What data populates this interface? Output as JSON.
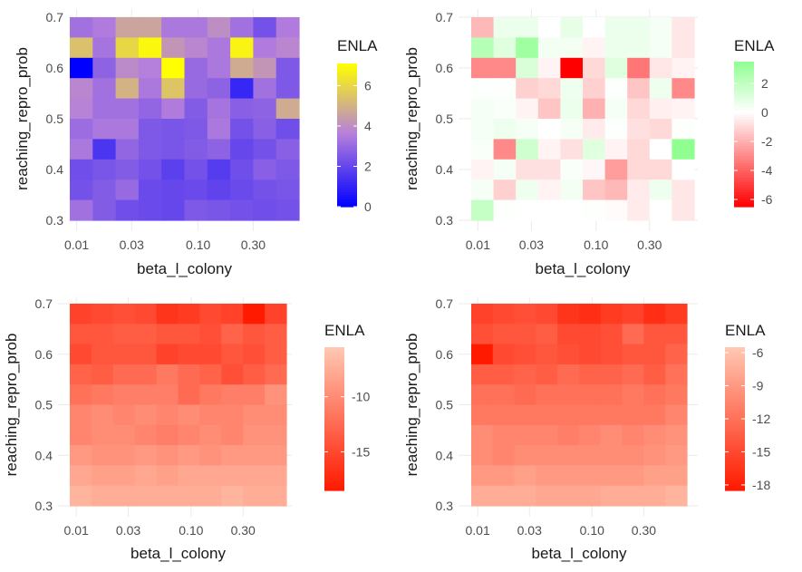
{
  "chart_data": [
    {
      "type": "heatmap",
      "xlabel": "beta_l_colony",
      "ylabel": "reaching_repro_prob",
      "xscale": "log",
      "x_tick_labels": [
        "0.01",
        "0.03",
        "0.10",
        "0.30"
      ],
      "x_tick_values": [
        0.01,
        0.03,
        0.1,
        0.3
      ],
      "y_tick_labels": [
        "0.3",
        "0.4",
        "0.5",
        "0.6",
        "0.7"
      ],
      "y_tick_values": [
        0.3,
        0.4,
        0.5,
        0.6,
        0.7
      ],
      "legend": {
        "title": "ENLA",
        "tick_labels": [
          "0",
          "2",
          "4",
          "6"
        ],
        "tick_values": [
          0,
          2,
          4,
          6
        ],
        "range": [
          0,
          7.1
        ],
        "placement": "right"
      },
      "colors": {
        "low": "#0000ff",
        "mid": "#b57fdc",
        "high": "#ffff00"
      },
      "midpoint": 3.6,
      "rows_top_to_bottom": [
        [
          3.2,
          3.5,
          4.6,
          4.6,
          3.4,
          3.4,
          4.0,
          3.2,
          2.3,
          3.5
        ],
        [
          5.4,
          3.3,
          6.0,
          6.9,
          4.2,
          3.8,
          3.4,
          6.8,
          3.5,
          3.8
        ],
        [
          0.0,
          2.8,
          3.9,
          3.6,
          7.1,
          3.0,
          3.4,
          4.8,
          4.2,
          2.5
        ],
        [
          3.8,
          3.2,
          5.0,
          3.4,
          5.5,
          3.0,
          2.8,
          1.1,
          3.2,
          2.5
        ],
        [
          3.7,
          3.2,
          3.2,
          2.9,
          3.5,
          2.6,
          3.3,
          2.7,
          2.8,
          4.8
        ],
        [
          3.1,
          3.4,
          3.4,
          2.5,
          2.4,
          2.5,
          3.4,
          2.3,
          2.7,
          2.2
        ],
        [
          3.4,
          1.5,
          2.9,
          2.5,
          2.4,
          2.6,
          2.8,
          2.0,
          2.3,
          2.7
        ],
        [
          2.2,
          2.4,
          2.6,
          2.3,
          1.8,
          2.3,
          1.7,
          2.2,
          2.7,
          2.5
        ],
        [
          2.3,
          2.6,
          3.0,
          2.1,
          2.0,
          2.1,
          1.9,
          2.1,
          2.3,
          2.4
        ],
        [
          3.2,
          2.6,
          2.2,
          2.1,
          2.0,
          2.5,
          2.4,
          2.3,
          2.2,
          2.3
        ]
      ]
    },
    {
      "type": "heatmap",
      "xlabel": "beta_l_colony",
      "ylabel": "reaching_repro_prob",
      "xscale": "log",
      "x_tick_labels": [
        "0.01",
        "0.03",
        "0.10",
        "0.30"
      ],
      "x_tick_values": [
        0.01,
        0.03,
        0.1,
        0.3
      ],
      "y_tick_labels": [
        "0.3",
        "0.4",
        "0.5",
        "0.6",
        "0.7"
      ],
      "y_tick_values": [
        0.3,
        0.4,
        0.5,
        0.6,
        0.7
      ],
      "legend": {
        "title": "ENLA",
        "tick_labels": [
          "2",
          "0",
          "-2",
          "-4",
          "-6"
        ],
        "tick_values": [
          2,
          0,
          -2,
          -4,
          -6
        ],
        "range": [
          -6.5,
          3.5
        ],
        "placement": "right"
      },
      "colors": {
        "low": "#ff0000",
        "mid": "#ffffff",
        "high": "#90ff90"
      },
      "midpoint": 0,
      "rows_top_to_bottom": [
        [
          -1.8,
          0.6,
          0.6,
          0.0,
          0.8,
          0.0,
          0.6,
          0.6,
          0.3,
          -0.6
        ],
        [
          2.3,
          1.0,
          3.0,
          0.4,
          0.4,
          -0.3,
          0.6,
          0.6,
          0.3,
          -0.6
        ],
        [
          -3.0,
          -3.0,
          1.2,
          -0.3,
          -6.5,
          -1.0,
          1.0,
          -3.5,
          -0.6,
          -0.3
        ],
        [
          0.1,
          0.1,
          -1.2,
          -1.0,
          0.5,
          -1.2,
          0.1,
          -1.5,
          0.5,
          -3.0
        ],
        [
          0.3,
          0.2,
          -0.3,
          -1.5,
          0.6,
          -2.0,
          0.3,
          -1.0,
          -0.4,
          -0.3
        ],
        [
          0.3,
          0.5,
          0.3,
          0.0,
          0.3,
          -0.5,
          0.1,
          -0.8,
          -1.0,
          0.1
        ],
        [
          0.2,
          -3.0,
          1.5,
          -0.3,
          -0.8,
          1.0,
          -0.3,
          -1.0,
          0.0,
          3.5
        ],
        [
          -0.3,
          0.3,
          -0.8,
          -0.8,
          0.2,
          -0.2,
          -2.5,
          -1.0,
          -1.0,
          0.0
        ],
        [
          0.3,
          -1.2,
          0.5,
          -0.3,
          0.4,
          -1.5,
          -1.8,
          -0.5,
          0.5,
          -0.6
        ],
        [
          1.8,
          0.1,
          0.0,
          0.0,
          0.0,
          0.1,
          -0.1,
          -0.5,
          0.0,
          -0.6
        ]
      ]
    },
    {
      "type": "heatmap",
      "xlabel": "beta_l_colony",
      "ylabel": "reaching_repro_prob",
      "xscale": "log",
      "x_tick_labels": [
        "0.01",
        "0.03",
        "0.10",
        "0.30"
      ],
      "x_tick_values": [
        0.01,
        0.03,
        0.1,
        0.3
      ],
      "y_tick_labels": [
        "0.3",
        "0.4",
        "0.5",
        "0.6",
        "0.7"
      ],
      "y_tick_values": [
        0.3,
        0.4,
        0.5,
        0.6,
        0.7
      ],
      "legend": {
        "title": "ENLA",
        "tick_labels": [
          "-10",
          "-15"
        ],
        "tick_values": [
          -10,
          -15
        ],
        "range": [
          -18.5,
          -5.5
        ],
        "placement": "right"
      },
      "colors": {
        "low": "#ff1a00",
        "high": "#ffc8b2"
      },
      "rows_top_to_bottom": [
        [
          -15.5,
          -15.0,
          -14.5,
          -15.0,
          -16.5,
          -16.0,
          -15.0,
          -15.5,
          -18.5,
          -15.5
        ],
        [
          -14.0,
          -14.0,
          -13.5,
          -13.5,
          -14.0,
          -14.0,
          -14.5,
          -13.0,
          -14.0,
          -13.5
        ],
        [
          -15.0,
          -14.0,
          -14.0,
          -14.0,
          -15.5,
          -15.0,
          -15.0,
          -14.0,
          -14.5,
          -13.5
        ],
        [
          -13.0,
          -13.5,
          -12.5,
          -12.5,
          -11.5,
          -12.5,
          -13.0,
          -14.5,
          -13.5,
          -12.5
        ],
        [
          -12.0,
          -11.5,
          -11.0,
          -11.0,
          -11.0,
          -12.5,
          -11.5,
          -11.0,
          -11.0,
          -9.5
        ],
        [
          -10.5,
          -10.0,
          -10.5,
          -10.0,
          -10.5,
          -10.0,
          -10.5,
          -10.5,
          -10.0,
          -10.0
        ],
        [
          -10.5,
          -10.0,
          -10.0,
          -10.5,
          -11.0,
          -10.5,
          -10.0,
          -10.5,
          -9.5,
          -9.5
        ],
        [
          -9.0,
          -9.5,
          -9.5,
          -9.0,
          -9.5,
          -9.0,
          -9.5,
          -9.0,
          -9.0,
          -9.0
        ],
        [
          -8.0,
          -8.5,
          -8.5,
          -8.0,
          -8.5,
          -8.0,
          -8.0,
          -8.0,
          -8.0,
          -8.0
        ],
        [
          -7.0,
          -7.5,
          -7.5,
          -7.5,
          -7.5,
          -7.5,
          -7.5,
          -7.0,
          -7.5,
          -7.5
        ]
      ]
    },
    {
      "type": "heatmap",
      "xlabel": "beta_l_colony",
      "ylabel": "reaching_repro_prob",
      "xscale": "log",
      "x_tick_labels": [
        "0.01",
        "0.03",
        "0.10",
        "0.30"
      ],
      "x_tick_values": [
        0.01,
        0.03,
        0.1,
        0.3
      ],
      "y_tick_labels": [
        "0.3",
        "0.4",
        "0.5",
        "0.6",
        "0.7"
      ],
      "y_tick_values": [
        0.3,
        0.4,
        0.5,
        0.6,
        0.7
      ],
      "legend": {
        "title": "ENLA",
        "tick_labels": [
          "-6",
          "-9",
          "-12",
          "-15",
          "-18"
        ],
        "tick_values": [
          -6,
          -9,
          -12,
          -15,
          -18
        ],
        "range": [
          -18.5,
          -5.5
        ],
        "placement": "right"
      },
      "colors": {
        "low": "#ff1a00",
        "high": "#ffc8b2"
      },
      "rows_top_to_bottom": [
        [
          -15.5,
          -15.0,
          -14.5,
          -15.0,
          -16.5,
          -17.0,
          -16.0,
          -15.5,
          -17.0,
          -16.0
        ],
        [
          -14.5,
          -14.0,
          -14.0,
          -13.5,
          -15.0,
          -15.0,
          -14.5,
          -12.5,
          -14.0,
          -14.0
        ],
        [
          -18.5,
          -15.0,
          -14.5,
          -14.0,
          -14.5,
          -15.0,
          -14.5,
          -14.0,
          -14.0,
          -13.0
        ],
        [
          -13.5,
          -13.5,
          -13.0,
          -13.5,
          -12.5,
          -13.0,
          -13.0,
          -12.5,
          -13.5,
          -12.0
        ],
        [
          -12.0,
          -12.0,
          -12.5,
          -12.0,
          -12.0,
          -12.0,
          -12.0,
          -11.5,
          -12.0,
          -11.5
        ],
        [
          -11.5,
          -11.5,
          -11.5,
          -11.5,
          -11.5,
          -11.5,
          -11.5,
          -11.5,
          -11.5,
          -10.5
        ],
        [
          -10.0,
          -10.5,
          -10.5,
          -10.5,
          -11.0,
          -10.5,
          -10.0,
          -10.5,
          -10.0,
          -9.5
        ],
        [
          -10.0,
          -10.5,
          -10.0,
          -10.0,
          -10.0,
          -10.0,
          -10.0,
          -10.0,
          -9.5,
          -9.0
        ],
        [
          -9.0,
          -9.0,
          -8.5,
          -9.0,
          -9.0,
          -9.0,
          -9.0,
          -9.0,
          -8.5,
          -8.5
        ],
        [
          -7.5,
          -7.5,
          -7.5,
          -8.0,
          -8.0,
          -8.0,
          -7.5,
          -7.5,
          -7.5,
          -7.0
        ]
      ]
    }
  ]
}
